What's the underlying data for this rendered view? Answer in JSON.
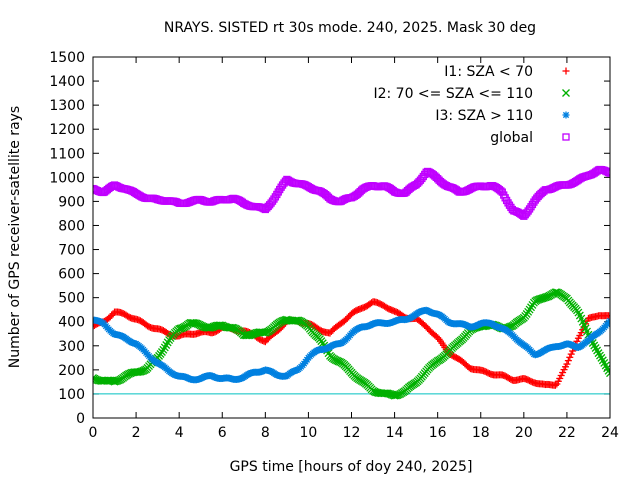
{
  "chart_data": {
    "type": "scatter",
    "title": "NRAYS. SISTED rt 30s mode. 240, 2025. Mask 30 deg",
    "xlabel": "GPS time [hours of doy 240, 2025]",
    "ylabel": "Number of GPS receiver-satellite rays",
    "xlim": [
      0,
      24
    ],
    "ylim": [
      0,
      1500
    ],
    "xticks": [
      0,
      2,
      4,
      6,
      8,
      10,
      12,
      14,
      16,
      18,
      20,
      22,
      24
    ],
    "yticks": [
      0,
      100,
      200,
      300,
      400,
      500,
      600,
      700,
      800,
      900,
      1000,
      1100,
      1200,
      1300,
      1400,
      1500
    ],
    "legend_position": "top-right",
    "reference_line": {
      "y": 100,
      "color": "#00c0c0"
    },
    "series": [
      {
        "name": "I1: SZA < 70",
        "marker": "+",
        "color": "#ff0000",
        "x": [
          0,
          0.5,
          1,
          1.5,
          2,
          2.5,
          3,
          3.5,
          4,
          4.5,
          5,
          5.5,
          6,
          6.5,
          7,
          7.5,
          8,
          8.5,
          9,
          9.5,
          10,
          10.5,
          11,
          11.5,
          12,
          12.5,
          13,
          13.5,
          14,
          14.5,
          15,
          15.5,
          16,
          16.5,
          17,
          17.5,
          18,
          18.5,
          19,
          19.5,
          20,
          20.5,
          21,
          21.5,
          22,
          22.5,
          23,
          23.5,
          24
        ],
        "y": [
          380,
          400,
          440,
          430,
          410,
          385,
          370,
          350,
          340,
          350,
          355,
          355,
          375,
          370,
          360,
          345,
          315,
          360,
          400,
          405,
          390,
          370,
          350,
          395,
          430,
          460,
          480,
          470,
          440,
          420,
          410,
          380,
          330,
          275,
          240,
          210,
          195,
          185,
          175,
          160,
          160,
          150,
          135,
          140,
          220,
          330,
          410,
          430,
          420
        ]
      },
      {
        "name": "I2: 70 <= SZA <= 110",
        "marker": "x",
        "color": "#00b000",
        "x": [
          0,
          0.5,
          1,
          1.5,
          2,
          2.5,
          3,
          3.5,
          4,
          4.5,
          5,
          5.5,
          6,
          6.5,
          7,
          7.5,
          8,
          8.5,
          9,
          9.5,
          10,
          10.5,
          11,
          11.5,
          12,
          12.5,
          13,
          13.5,
          14,
          14.5,
          15,
          15.5,
          16,
          16.5,
          17,
          17.5,
          18,
          18.5,
          19,
          19.5,
          20,
          20.5,
          21,
          21.5,
          22,
          22.5,
          23,
          23.5,
          24
        ],
        "y": [
          165,
          155,
          150,
          175,
          190,
          205,
          250,
          320,
          370,
          395,
          385,
          375,
          385,
          375,
          345,
          350,
          355,
          385,
          410,
          405,
          380,
          330,
          260,
          230,
          190,
          150,
          115,
          100,
          95,
          110,
          150,
          195,
          240,
          270,
          320,
          360,
          385,
          385,
          375,
          380,
          420,
          480,
          505,
          520,
          500,
          440,
          350,
          260,
          190
        ]
      },
      {
        "name": "I3: SZA > 110",
        "marker": "*",
        "color": "#0080e0",
        "x": [
          0,
          0.5,
          1,
          1.5,
          2,
          2.5,
          3,
          3.5,
          4,
          4.5,
          5,
          5.5,
          6,
          6.5,
          7,
          7.5,
          8,
          8.5,
          9,
          9.5,
          10,
          10.5,
          11,
          11.5,
          12,
          12.5,
          13,
          13.5,
          14,
          14.5,
          15,
          15.5,
          16,
          16.5,
          17,
          17.5,
          18,
          18.5,
          19,
          19.5,
          20,
          20.5,
          21,
          21.5,
          22,
          22.5,
          23,
          23.5,
          24
        ],
        "y": [
          410,
          390,
          350,
          330,
          310,
          265,
          230,
          195,
          175,
          160,
          165,
          175,
          165,
          160,
          170,
          190,
          200,
          180,
          175,
          200,
          250,
          285,
          295,
          310,
          350,
          380,
          390,
          395,
          400,
          410,
          430,
          450,
          430,
          400,
          390,
          380,
          390,
          395,
          370,
          345,
          300,
          265,
          280,
          300,
          305,
          295,
          320,
          360,
          400
        ]
      },
      {
        "name": "global",
        "marker": "square",
        "color": "#c000ff",
        "x": [
          0,
          0.5,
          1,
          1.5,
          2,
          2.5,
          3,
          3.5,
          4,
          4.5,
          5,
          5.5,
          6,
          6.5,
          7,
          7.5,
          8,
          8.5,
          9,
          9.5,
          10,
          10.5,
          11,
          11.5,
          12,
          12.5,
          13,
          13.5,
          14,
          14.5,
          15,
          15.5,
          16,
          16.5,
          17,
          17.5,
          18,
          18.5,
          19,
          19.5,
          20,
          20.5,
          21,
          21.5,
          22,
          22.5,
          23,
          23.5,
          24
        ],
        "y": [
          950,
          940,
          965,
          955,
          930,
          915,
          905,
          905,
          890,
          900,
          905,
          900,
          905,
          915,
          890,
          880,
          865,
          925,
          990,
          975,
          960,
          945,
          910,
          900,
          915,
          950,
          965,
          965,
          940,
          935,
          970,
          1025,
          995,
          960,
          940,
          950,
          965,
          965,
          940,
          860,
          840,
          900,
          950,
          960,
          970,
          985,
          1010,
          1030,
          1020
        ]
      }
    ]
  }
}
